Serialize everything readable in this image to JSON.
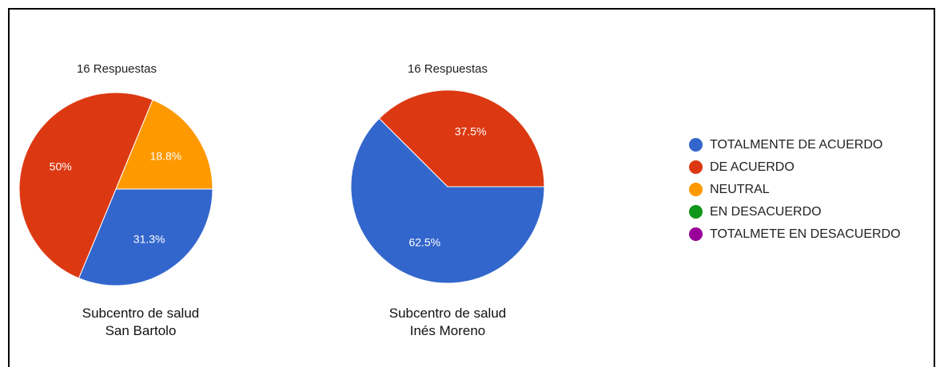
{
  "colors": {
    "totalmente": "#3366cc",
    "acuerdo": "#dc3912",
    "neutral": "#ff9900",
    "desacuerdo": "#109618",
    "totalmete_desacuerdo": "#990099"
  },
  "legend": [
    {
      "label": "TOTALMENTE DE ACUERDO",
      "color": "#3366cc"
    },
    {
      "label": "DE ACUERDO",
      "color": "#dc3912"
    },
    {
      "label": "NEUTRAL",
      "color": "#ff9900"
    },
    {
      "label": "EN DESACUERDO",
      "color": "#109618"
    },
    {
      "label": "TOTALMETE EN DESACUERDO",
      "color": "#990099"
    }
  ],
  "chart_data": [
    {
      "type": "pie",
      "subtitle": "16 Respuestas",
      "caption_line1": "Subcentro de salud",
      "caption_line2": "San Bartolo",
      "slices": [
        {
          "label": "TOTALMENTE DE ACUERDO",
          "value": 31.3,
          "text": "31.3%",
          "color": "#3366cc"
        },
        {
          "label": "DE ACUERDO",
          "value": 50,
          "text": "50%",
          "color": "#dc3912"
        },
        {
          "label": "NEUTRAL",
          "value": 18.8,
          "text": "18.8%",
          "color": "#ff9900"
        }
      ]
    },
    {
      "type": "pie",
      "subtitle": "16 Respuestas",
      "caption_line1": "Subcentro de salud",
      "caption_line2": "Inés Moreno",
      "slices": [
        {
          "label": "TOTALMENTE DE ACUERDO",
          "value": 62.5,
          "text": "62.5%",
          "color": "#3366cc"
        },
        {
          "label": "DE ACUERDO",
          "value": 37.5,
          "text": "37.5%",
          "color": "#dc3912"
        }
      ]
    }
  ]
}
